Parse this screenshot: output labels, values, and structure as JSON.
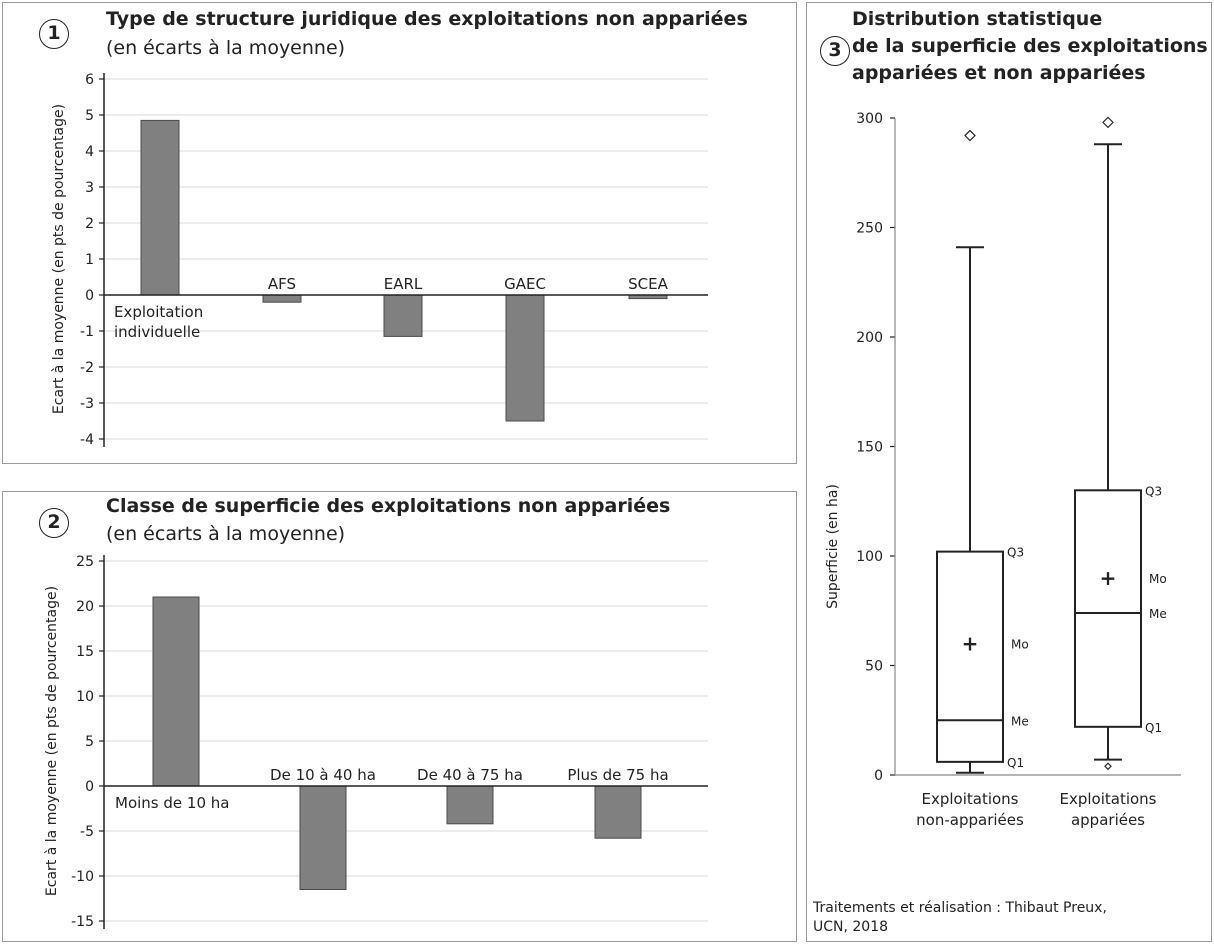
{
  "panel1": {
    "number": "1",
    "title": "Type de structure juridique des exploitations non appariées",
    "subtitle": "(en écarts à la moyenne)"
  },
  "panel2": {
    "number": "2",
    "title": "Classe de superficie des exploitations non appariées",
    "subtitle": "(en écarts à la moyenne)"
  },
  "panel3": {
    "number": "3",
    "title_lines": [
      "Distribution statistique",
      "de la superficie des exploitations",
      "appariées et non appariées"
    ],
    "credit_lines": [
      "Traitements et réalisation : Thibaut Preux,",
      "UCN, 2018"
    ]
  },
  "colors": {
    "bar": "#808080",
    "axis": "#222222",
    "grid": "#d9d9d9"
  },
  "chart_data": [
    {
      "type": "bar",
      "title": "Type de structure juridique des exploitations non appariées",
      "subtitle": "(en écarts à la moyenne)",
      "ylabel": "Ecart à la moyenne (en pts de pourcentage)",
      "categories": [
        "Exploitation individuelle",
        "AFS",
        "EARL",
        "GAEC",
        "SCEA"
      ],
      "values": [
        4.85,
        -0.2,
        -1.15,
        -3.5,
        -0.1
      ],
      "ylim": [
        -4,
        6
      ],
      "yticks": [
        -4,
        -3,
        -2,
        -1,
        0,
        1,
        2,
        3,
        4,
        5,
        6
      ],
      "grid": true
    },
    {
      "type": "bar",
      "title": "Classe de superficie des exploitations non appariées",
      "subtitle": "(en écarts à la moyenne)",
      "ylabel": "Ecart à la moyenne (en pts de pourcentage)",
      "categories": [
        "Moins de 10 ha",
        "De 10 à 40 ha",
        "De 40 à 75 ha",
        "Plus de 75 ha"
      ],
      "values": [
        21,
        -11.5,
        -4.2,
        -5.8
      ],
      "ylim": [
        -15,
        25
      ],
      "yticks": [
        -15,
        -10,
        -5,
        0,
        5,
        10,
        15,
        20,
        25
      ],
      "grid": true
    },
    {
      "type": "boxplot",
      "title": "Distribution statistique de la superficie des exploitations appariées et non appariées",
      "ylabel": "Superficie (en ha)",
      "ylim": [
        0,
        300
      ],
      "yticks": [
        0,
        50,
        100,
        150,
        200,
        250,
        300
      ],
      "grid": false,
      "categories": [
        "Exploitations non-appariées",
        "Exploitations appariées"
      ],
      "series": [
        {
          "min": 1,
          "q1": 6,
          "median": 25,
          "mean": 60,
          "q3": 102,
          "max": 241,
          "outliers_high": [
            292
          ],
          "outliers_low": []
        },
        {
          "min": 7,
          "q1": 22,
          "median": 74,
          "mean": 90,
          "q3": 130,
          "max": 288,
          "outliers_high": [
            298
          ],
          "outliers_low": [
            4
          ]
        }
      ],
      "annotation_labels": {
        "q3": "Q3",
        "mean": "Mo",
        "median": "Me",
        "q1": "Q1"
      }
    }
  ]
}
